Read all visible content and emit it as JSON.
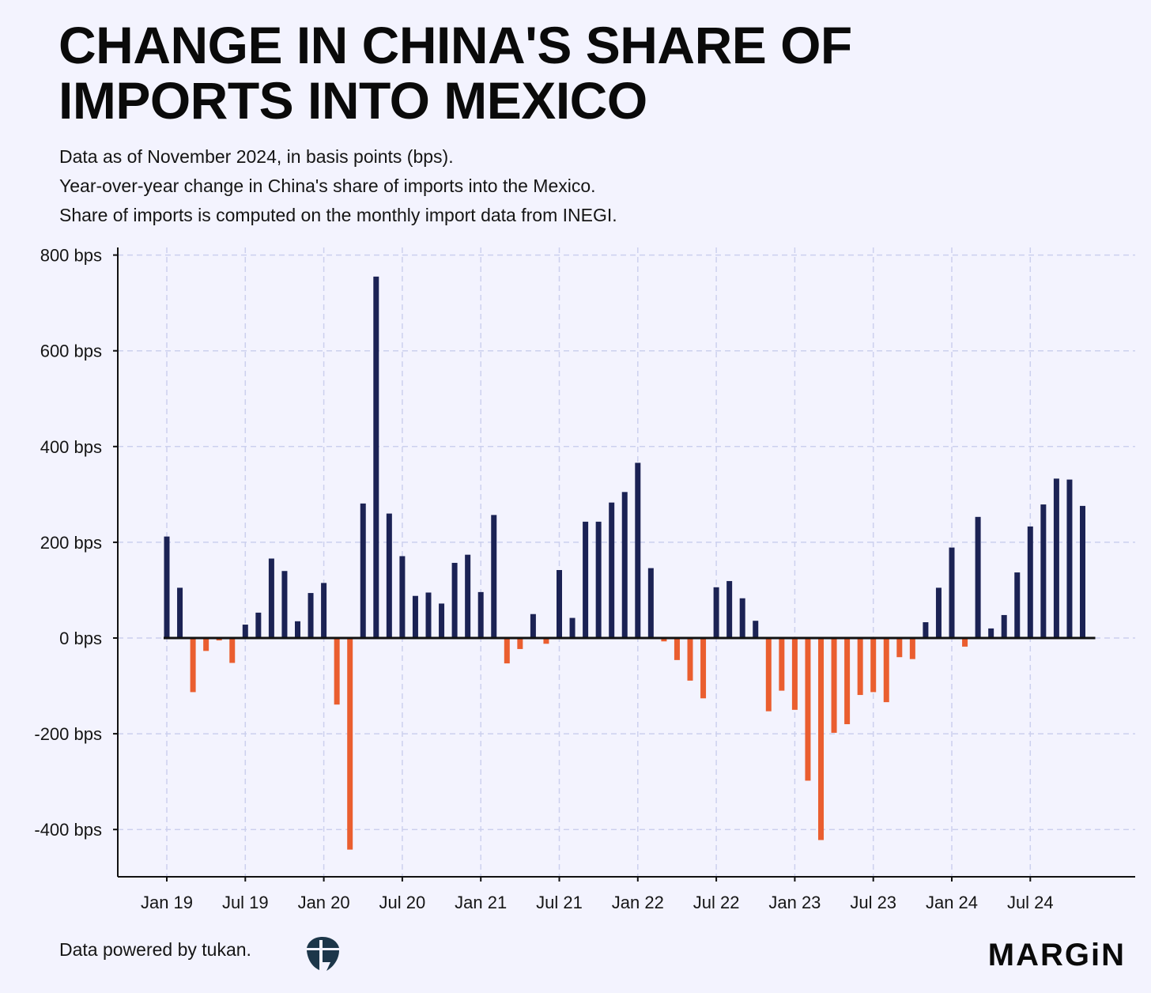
{
  "title_lines": [
    "CHANGE IN CHINA'S SHARE OF",
    "IMPORTS INTO MEXICO"
  ],
  "subtitle_lines": [
    "Data as of November 2024, in basis points (bps).",
    "Year-over-year change in China's share of imports into the Mexico.",
    "Share of imports is computed on the monthly import data from INEGI."
  ],
  "footer": {
    "credit": "Data powered by tukan.",
    "brand": "MARGiN"
  },
  "colors": {
    "positive": "#1b2254",
    "negative": "#ea5e2f",
    "grid": "#ccd0ee",
    "background": "#f3f3fe"
  },
  "icons": {
    "tukan_logo": "tukan-logo-icon"
  },
  "chart_data": {
    "type": "bar",
    "title": "CHANGE IN CHINA'S SHARE OF IMPORTS INTO MEXICO",
    "xlabel": "",
    "ylabel": "",
    "unit": "bps",
    "ylim": [
      -500,
      820
    ],
    "y_ticks": [
      -400,
      -200,
      0,
      200,
      400,
      600,
      800
    ],
    "y_tick_labels": [
      "-400 bps",
      "-200 bps",
      "0 bps",
      "200 bps",
      "400 bps",
      "600 bps",
      "800 bps"
    ],
    "x_tick_labels": [
      "Jan 19",
      "Jul 19",
      "Jan 20",
      "Jul 20",
      "Jan 21",
      "Jul 21",
      "Jan 22",
      "Jul 22",
      "Jan 23",
      "Jul 23",
      "Jan 24",
      "Jul 24"
    ],
    "x_tick_month_index": [
      0,
      6,
      12,
      18,
      24,
      30,
      36,
      42,
      48,
      54,
      60,
      66
    ],
    "grid": true,
    "categories": [
      "Jan 19",
      "Feb 19",
      "Mar 19",
      "Apr 19",
      "May 19",
      "Jun 19",
      "Jul 19",
      "Aug 19",
      "Sep 19",
      "Oct 19",
      "Nov 19",
      "Dec 19",
      "Jan 20",
      "Feb 20",
      "Mar 20",
      "Apr 20",
      "May 20",
      "Jun 20",
      "Jul 20",
      "Aug 20",
      "Sep 20",
      "Oct 20",
      "Nov 20",
      "Dec 20",
      "Jan 21",
      "Feb 21",
      "Mar 21",
      "Apr 21",
      "May 21",
      "Jun 21",
      "Jul 21",
      "Aug 21",
      "Sep 21",
      "Oct 21",
      "Nov 21",
      "Dec 21",
      "Jan 22",
      "Feb 22",
      "Mar 22",
      "Apr 22",
      "May 22",
      "Jun 22",
      "Jul 22",
      "Aug 22",
      "Sep 22",
      "Oct 22",
      "Nov 22",
      "Dec 22",
      "Jan 23",
      "Feb 23",
      "Mar 23",
      "Apr 23",
      "May 23",
      "Jun 23",
      "Jul 23",
      "Aug 23",
      "Sep 23",
      "Oct 23",
      "Nov 23",
      "Dec 23",
      "Jan 24",
      "Feb 24",
      "Mar 24",
      "Apr 24",
      "May 24",
      "Jun 24",
      "Jul 24",
      "Aug 24",
      "Sep 24",
      "Oct 24",
      "Nov 24"
    ],
    "values": [
      212,
      105,
      -113,
      -27,
      -5,
      -52,
      28,
      53,
      166,
      140,
      35,
      94,
      115,
      -139,
      -442,
      281,
      755,
      260,
      171,
      88,
      95,
      72,
      157,
      174,
      96,
      257,
      -53,
      -23,
      50,
      -12,
      142,
      42,
      243,
      243,
      283,
      305,
      366,
      146,
      -7,
      -46,
      -89,
      -126,
      106,
      119,
      83,
      36,
      -153,
      -110,
      -150,
      -298,
      -422,
      -198,
      -180,
      -119,
      -113,
      -134,
      -40,
      -44,
      33,
      105,
      189,
      -18,
      253,
      20,
      48,
      137,
      233,
      279,
      333,
      331,
      276
    ]
  }
}
